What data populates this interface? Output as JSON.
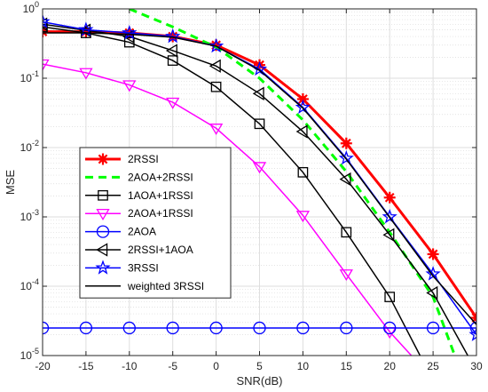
{
  "chart_data": {
    "type": "line",
    "title": "",
    "xlabel": "SNR(dB)",
    "ylabel": "MSE",
    "x": [
      -20,
      -15,
      -10,
      -5,
      0,
      5,
      10,
      15,
      20,
      25,
      30
    ],
    "xlim": [
      -20,
      30
    ],
    "ylim": [
      1e-05,
      1
    ],
    "yscale": "log",
    "grid": true,
    "minor_grid": true,
    "legend_position": "lower-left",
    "xticks": [
      "-20",
      "-15",
      "-10",
      "-5",
      "0",
      "5",
      "10",
      "15",
      "20",
      "25",
      "30"
    ],
    "yticks": [
      {
        "base": "10",
        "exp": "0"
      },
      {
        "base": "10",
        "exp": "-1"
      },
      {
        "base": "10",
        "exp": "-2"
      },
      {
        "base": "10",
        "exp": "-3"
      },
      {
        "base": "10",
        "exp": "-4"
      },
      {
        "base": "10",
        "exp": "-5"
      }
    ],
    "series": [
      {
        "name": "2RSSI",
        "color": "#ff0000",
        "dash": "solid",
        "marker": "asterisk-filled",
        "width": 3,
        "x": [
          -20,
          -15,
          -10,
          -5,
          0,
          5,
          10,
          15,
          20,
          25,
          30
        ],
        "values": [
          0.47,
          0.47,
          0.45,
          0.4,
          0.3,
          0.155,
          0.05,
          0.0115,
          0.0019,
          0.00029,
          3.5e-05
        ]
      },
      {
        "name": "2AOA+2RSSI",
        "color": "#00ff00",
        "dash": "dashed",
        "marker": "none",
        "width": 3,
        "x": [
          -10,
          -5,
          0,
          5,
          10,
          15,
          20,
          25,
          27.5
        ],
        "values": [
          1.0,
          0.55,
          0.28,
          0.1,
          0.025,
          0.0045,
          0.0006,
          7e-05,
          1e-05
        ]
      },
      {
        "name": "1AOA+1RSSI",
        "color": "#000000",
        "dash": "solid",
        "marker": "square",
        "width": 1.5,
        "x": [
          -20,
          -15,
          -10,
          -5,
          0,
          5,
          10,
          15,
          20,
          23.5
        ],
        "values": [
          0.55,
          0.45,
          0.33,
          0.18,
          0.075,
          0.022,
          0.0044,
          0.0006,
          7e-05,
          1e-05
        ]
      },
      {
        "name": "2AOA+1RSSI",
        "color": "#ff00ff",
        "dash": "solid",
        "marker": "triangle-down",
        "width": 1.5,
        "x": [
          -20,
          -15,
          -10,
          -5,
          0,
          5,
          10,
          15,
          20,
          22.5
        ],
        "values": [
          0.16,
          0.12,
          0.08,
          0.045,
          0.019,
          0.0053,
          0.00105,
          0.00015,
          2.2e-05,
          1e-05
        ]
      },
      {
        "name": "2AOA",
        "color": "#0000ff",
        "dash": "solid",
        "marker": "circle",
        "width": 1.5,
        "x": [
          -20,
          -15,
          -10,
          -5,
          0,
          5,
          10,
          15,
          20,
          25,
          30
        ],
        "values": [
          2.5e-05,
          2.5e-05,
          2.5e-05,
          2.5e-05,
          2.5e-05,
          2.5e-05,
          2.5e-05,
          2.5e-05,
          2.5e-05,
          2.5e-05,
          2.5e-05
        ]
      },
      {
        "name": "2RSSI+1AOA",
        "color": "#000000",
        "dash": "solid",
        "marker": "triangle-left",
        "width": 1.5,
        "x": [
          -20,
          -15,
          -10,
          -5,
          0,
          5,
          10,
          15,
          20,
          25,
          29
        ],
        "values": [
          0.6,
          0.49,
          0.4,
          0.25,
          0.15,
          0.06,
          0.017,
          0.0035,
          0.00055,
          8e-05,
          1e-05
        ]
      },
      {
        "name": "3RSSI",
        "color": "#0000ff",
        "dash": "solid",
        "marker": "star",
        "width": 1.5,
        "x": [
          -20,
          -15,
          -10,
          -5,
          0,
          5,
          10,
          15,
          20,
          25,
          30
        ],
        "values": [
          0.65,
          0.5,
          0.45,
          0.4,
          0.29,
          0.135,
          0.038,
          0.007,
          0.001,
          0.00015,
          2e-05
        ]
      },
      {
        "name": "weighted 3RSSI",
        "color": "#000000",
        "dash": "solid",
        "marker": "none",
        "width": 1.5,
        "x": [
          -20,
          -15,
          -10,
          -5,
          0,
          5,
          10,
          15,
          20,
          25,
          30
        ],
        "values": [
          0.45,
          0.45,
          0.43,
          0.39,
          0.29,
          0.13,
          0.037,
          0.0068,
          0.00098,
          0.00014,
          2.8e-05
        ]
      }
    ]
  }
}
